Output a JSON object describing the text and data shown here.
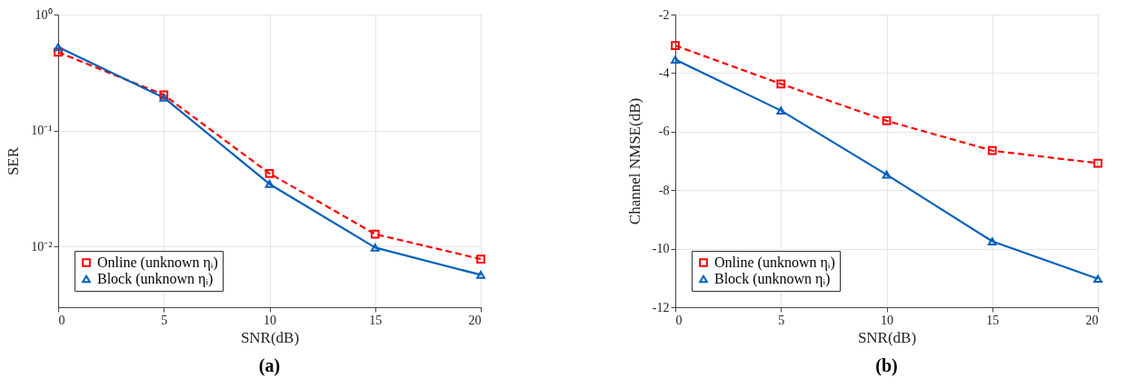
{
  "chart_data": [
    {
      "type": "line",
      "xlabel": "SNR(dB)",
      "ylabel": "SER",
      "annotations": [
        "(a)"
      ],
      "x": [
        0,
        5,
        10,
        15,
        20
      ],
      "xlim": [
        0,
        20
      ],
      "xticks": [
        0,
        5,
        10,
        15,
        20
      ],
      "ylim": [
        0.003,
        1
      ],
      "log": "y",
      "yticks": [
        {
          "value": 1,
          "label": "10⁰"
        },
        {
          "value": 0.1,
          "label": "10⁻¹"
        },
        {
          "value": 0.01,
          "label": "10⁻²"
        }
      ],
      "grid": true,
      "legend": "bottom left",
      "series": [
        {
          "name": "Online (unknown ηᵢ)",
          "color": "#ff0000",
          "marker": "square",
          "line_style": "dashed",
          "values": [
            0.474,
            0.203,
            0.0427,
            0.0128,
            0.0078
          ]
        },
        {
          "name": "Block (unknown ηᵢ)",
          "color": "#0060bd",
          "marker": "triangle",
          "line_style": "solid",
          "values": [
            0.524,
            0.192,
            0.0346,
            0.0098,
            0.0057
          ]
        }
      ]
    },
    {
      "type": "line",
      "xlabel": "SNR(dB)",
      "ylabel": "Channel NMSE(dB)",
      "annotations": [
        "(b)"
      ],
      "x": [
        0,
        5,
        10,
        15,
        20
      ],
      "xlim": [
        0,
        20
      ],
      "xticks": [
        0,
        5,
        10,
        15,
        20
      ],
      "ylim": [
        -12,
        -2
      ],
      "yticks": [
        -12,
        -10,
        -8,
        -6,
        -4,
        -2
      ],
      "grid": true,
      "legend": "bottom left",
      "series": [
        {
          "name": "Online (unknown ηᵢ)",
          "color": "#ff0000",
          "marker": "square",
          "line_style": "dashed",
          "values": [
            -3.06,
            -4.37,
            -5.63,
            -6.65,
            -7.08
          ]
        },
        {
          "name": "Block (unknown ηᵢ)",
          "color": "#0060bd",
          "marker": "triangle",
          "line_style": "solid",
          "values": [
            -3.54,
            -5.28,
            -7.47,
            -9.75,
            -11.03
          ]
        }
      ]
    }
  ]
}
